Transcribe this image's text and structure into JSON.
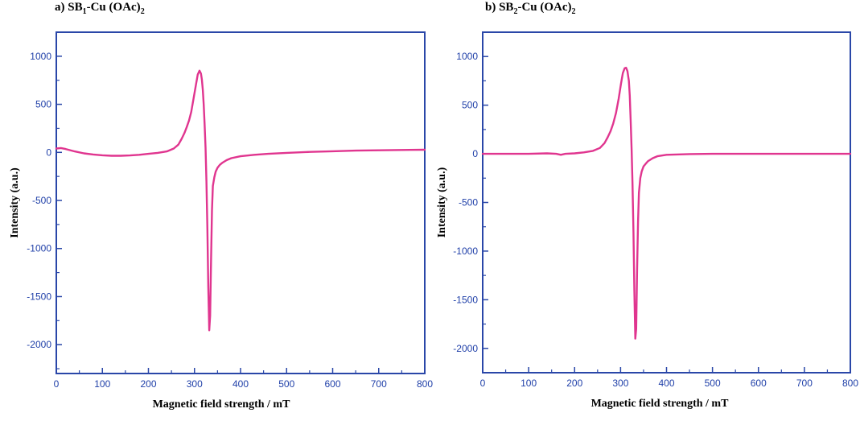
{
  "chart_data": [
    {
      "type": "line",
      "panel_label": "a)",
      "title_parts": [
        "SB",
        "1",
        "-Cu (OAc)",
        "2"
      ],
      "xlabel": "Magnetic field strength / mT",
      "ylabel": "Intensity (a.u.)",
      "xlim": [
        0,
        800
      ],
      "ylim": [
        -2300,
        1250
      ],
      "xticks": [
        "0",
        "100",
        "200",
        "300",
        "400",
        "500",
        "600",
        "700",
        "800"
      ],
      "yticks": [
        "-2000",
        "-1500",
        "-1000",
        "-500",
        "0",
        "500",
        "1000"
      ],
      "grid": false,
      "line_color": "#e0358f",
      "axis_color": "#2a47a8",
      "series": [
        {
          "x": [
            0,
            10,
            20,
            40,
            60,
            80,
            100,
            120,
            140,
            160,
            180,
            200,
            220,
            240,
            255,
            265,
            272,
            278,
            283,
            288,
            293,
            298,
            303,
            307,
            311,
            314,
            316,
            318,
            320,
            322,
            324,
            326,
            328,
            330,
            332,
            334,
            336,
            338,
            340,
            343,
            346,
            350,
            355,
            360,
            370,
            380,
            400,
            430,
            460,
            500,
            550,
            600,
            650,
            700,
            750,
            800
          ],
          "y": [
            40,
            45,
            35,
            10,
            -10,
            -22,
            -30,
            -35,
            -35,
            -32,
            -25,
            -15,
            -5,
            10,
            40,
            80,
            140,
            200,
            260,
            330,
            420,
            560,
            700,
            810,
            850,
            820,
            760,
            650,
            500,
            300,
            50,
            -300,
            -800,
            -1400,
            -1850,
            -1700,
            -1100,
            -600,
            -350,
            -260,
            -200,
            -160,
            -130,
            -110,
            -80,
            -60,
            -40,
            -25,
            -15,
            -5,
            5,
            12,
            18,
            22,
            25,
            28
          ]
        }
      ]
    },
    {
      "type": "line",
      "panel_label": "b)",
      "title_parts": [
        "SB",
        "2",
        "-Cu (OAc)",
        "2"
      ],
      "xlabel": "Magnetic field strength / mT",
      "ylabel": "Intensity (a.u.)",
      "xlim": [
        0,
        800
      ],
      "ylim": [
        -2250,
        1250
      ],
      "xticks": [
        "0",
        "100",
        "200",
        "300",
        "400",
        "500",
        "600",
        "700",
        "800"
      ],
      "yticks": [
        "-2000",
        "-1500",
        "-1000",
        "-500",
        "0",
        "500",
        "1000"
      ],
      "grid": false,
      "line_color": "#e0358f",
      "axis_color": "#2a47a8",
      "series": [
        {
          "x": [
            0,
            50,
            100,
            140,
            160,
            170,
            180,
            200,
            220,
            240,
            255,
            265,
            272,
            278,
            284,
            290,
            296,
            301,
            305,
            309,
            312,
            315,
            318,
            320,
            322,
            324,
            326,
            328,
            330,
            332,
            334,
            336,
            338,
            340,
            343,
            346,
            350,
            355,
            360,
            370,
            380,
            400,
            450,
            500,
            600,
            700,
            800
          ],
          "y": [
            0,
            0,
            0,
            5,
            0,
            -10,
            0,
            5,
            15,
            30,
            60,
            110,
            170,
            230,
            310,
            420,
            570,
            720,
            830,
            880,
            885,
            850,
            750,
            600,
            350,
            50,
            -300,
            -800,
            -1400,
            -1900,
            -1800,
            -1200,
            -700,
            -400,
            -250,
            -180,
            -130,
            -100,
            -75,
            -45,
            -25,
            -10,
            -3,
            0,
            0,
            0,
            0
          ]
        }
      ]
    }
  ]
}
